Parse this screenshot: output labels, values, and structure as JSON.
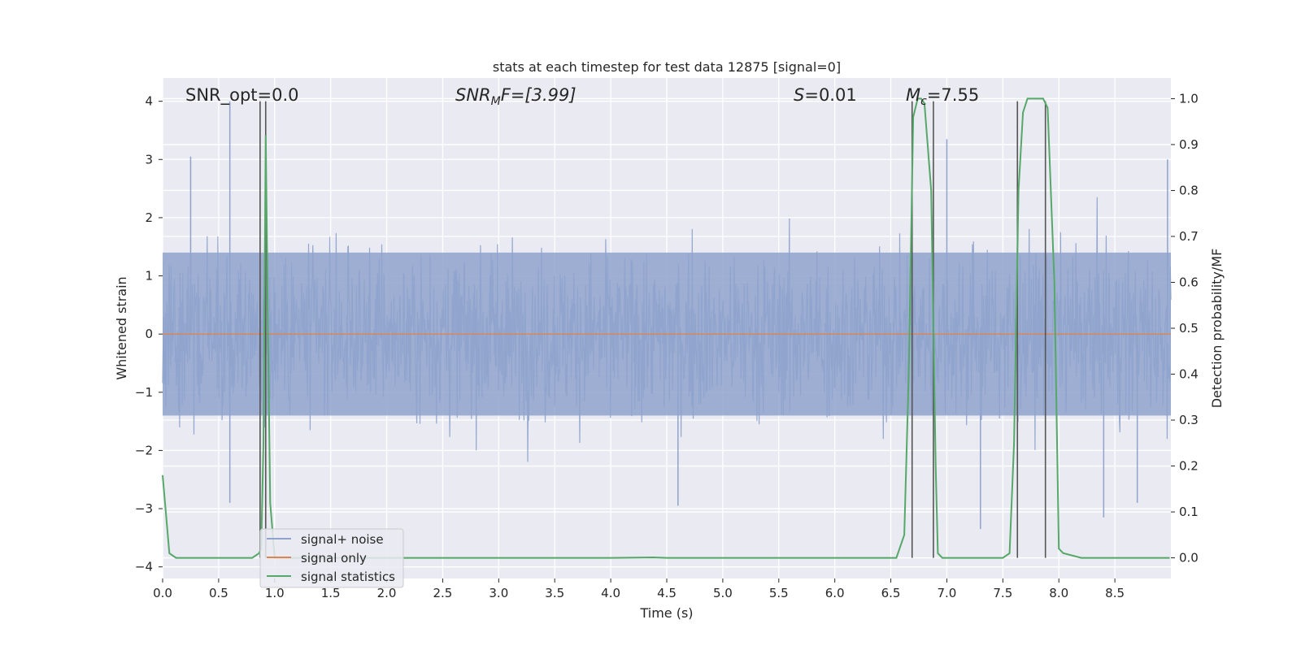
{
  "chart_data": {
    "type": "line",
    "title": "stats at each timestep for test data 12875 [signal=0]",
    "xlabel": "Time (s)",
    "ylabel_left": "Whitened strain",
    "ylabel_right": "Detection probability/MF",
    "xlim": [
      0.0,
      9.0
    ],
    "ylim_left": [
      -4.2,
      4.4
    ],
    "ylim_right": [
      -0.045,
      1.045
    ],
    "x_ticks": [
      "0.0",
      "0.5",
      "1.0",
      "1.5",
      "2.0",
      "2.5",
      "3.0",
      "3.5",
      "4.0",
      "4.5",
      "5.0",
      "5.5",
      "6.0",
      "6.5",
      "7.0",
      "7.5",
      "8.0",
      "8.5"
    ],
    "y_left_ticks": [
      "−4",
      "−3",
      "−2",
      "−1",
      "0",
      "1",
      "2",
      "3",
      "4"
    ],
    "y_right_ticks": [
      "0.0",
      "0.1",
      "0.2",
      "0.3",
      "0.4",
      "0.5",
      "0.6",
      "0.7",
      "0.8",
      "0.9",
      "1.0"
    ],
    "grid": true,
    "legend_position": "lower-left",
    "annotations": {
      "snr_opt": "SNR_opt=0.0",
      "snr_mf": "SNR",
      "snr_mf_sub": "M",
      "snr_mf_rest": "F=[3.99]",
      "s_sym": "S",
      "s_rest": "=0.01",
      "mc_sym": "M",
      "mc_sub": "c",
      "mc_rest": "=7.55"
    },
    "series": [
      {
        "name": "signal+ noise",
        "color": "#8fa3cc",
        "description_amplitude_core": [
          -1.4,
          1.4
        ],
        "peaks_high": [
          [
            0.6,
            4.0
          ],
          [
            0.92,
            3.3
          ],
          [
            0.25,
            3.05
          ],
          [
            7.0,
            3.35
          ],
          [
            8.97,
            3.0
          ]
        ],
        "peaks_low": [
          [
            0.6,
            -2.9
          ],
          [
            4.6,
            -2.95
          ],
          [
            7.3,
            -3.35
          ],
          [
            8.4,
            -3.15
          ],
          [
            8.7,
            -2.9
          ]
        ]
      },
      {
        "name": "signal only",
        "color": "#dd8452",
        "x": [
          0.0,
          9.0
        ],
        "y": [
          0.0,
          0.0
        ]
      },
      {
        "name": "signal statistics",
        "color": "#55a868",
        "axis": "right",
        "x": [
          0.0,
          0.06,
          0.12,
          0.2,
          0.4,
          0.6,
          0.8,
          0.86,
          0.88,
          0.9,
          0.92,
          0.94,
          0.96,
          1.0,
          1.05,
          1.5,
          2.0,
          3.0,
          4.0,
          4.38,
          4.5,
          5.0,
          6.0,
          6.55,
          6.62,
          6.66,
          6.7,
          6.74,
          6.77,
          6.8,
          6.86,
          6.9,
          6.92,
          6.96,
          7.0,
          7.2,
          7.5,
          7.56,
          7.6,
          7.64,
          7.68,
          7.72,
          7.86,
          7.9,
          7.96,
          8.0,
          8.04,
          8.2,
          8.5,
          8.99
        ],
        "y": [
          0.18,
          0.01,
          0.0,
          0.0,
          0.0,
          0.0,
          0.0,
          0.01,
          0.02,
          0.25,
          0.92,
          0.5,
          0.12,
          0.0,
          0.0,
          0.0,
          0.0,
          0.0,
          0.0,
          0.001,
          0.0,
          0.0,
          0.0,
          0.0,
          0.05,
          0.4,
          0.96,
          1.0,
          1.0,
          0.99,
          0.8,
          0.2,
          0.01,
          0.0,
          0.0,
          0.0,
          0.0,
          0.01,
          0.25,
          0.8,
          0.97,
          1.0,
          1.0,
          0.98,
          0.6,
          0.02,
          0.01,
          0.0,
          0.0,
          0.0
        ]
      }
    ],
    "vertical_markers_x": [
      0.87,
      0.92,
      6.69,
      6.88,
      7.63,
      7.88
    ],
    "vertical_markers_color": "#555555"
  }
}
